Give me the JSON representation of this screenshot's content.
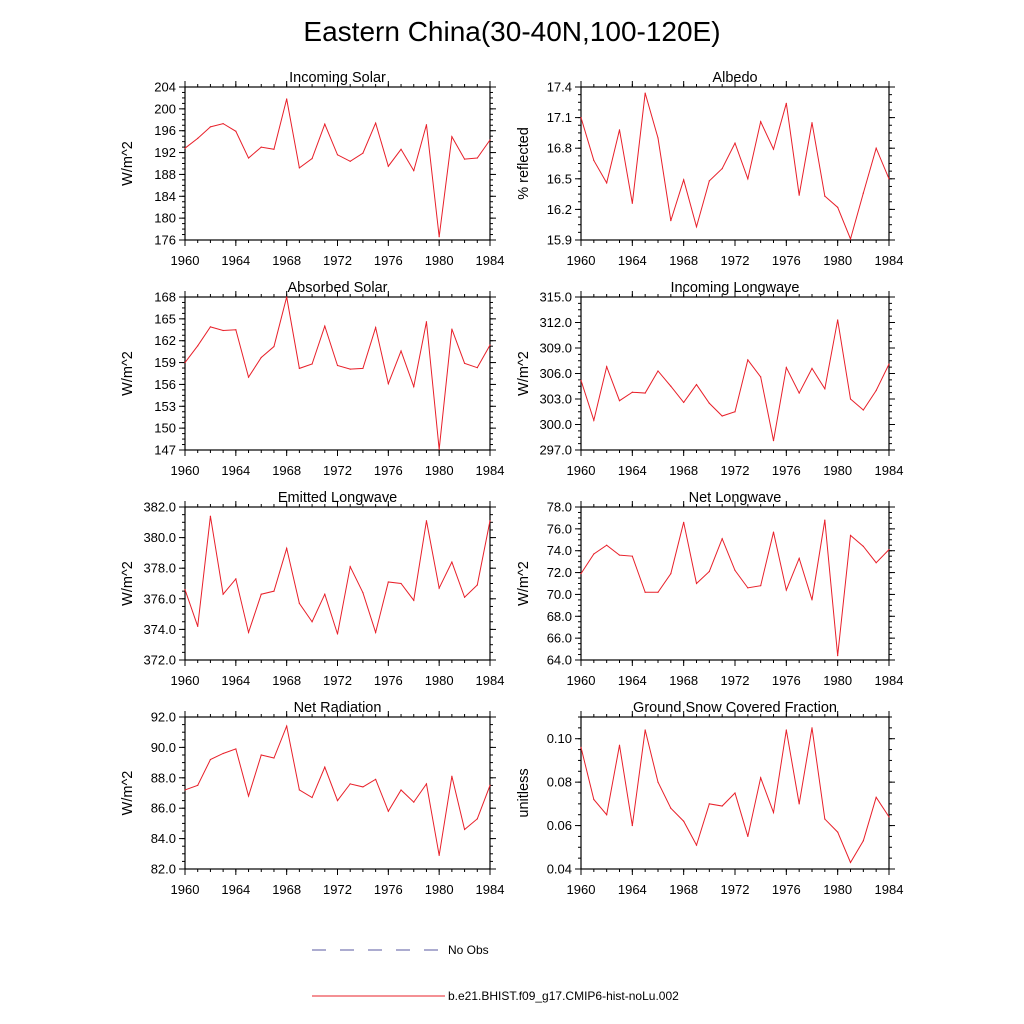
{
  "title": "Eastern China(30-40N,100-120E)",
  "legend": {
    "entries": [
      {
        "label": "No Obs",
        "style": "dashed",
        "color": "#5a5aa0"
      },
      {
        "label": "b.e21.BHIST.f09_g17.CMIP6-hist-noLu.002",
        "style": "solid",
        "color": "#e8202a"
      }
    ]
  },
  "chart_data": [
    {
      "type": "line",
      "title": "Incoming Solar",
      "ylabel": "W/m^2",
      "x": [
        1960,
        1961,
        1962,
        1963,
        1964,
        1965,
        1966,
        1967,
        1968,
        1969,
        1970,
        1971,
        1972,
        1973,
        1974,
        1975,
        1976,
        1977,
        1978,
        1979,
        1980,
        1981,
        1982,
        1983,
        1984
      ],
      "series": [
        {
          "name": "b.e21.BHIST.f09_g17.CMIP6-hist-noLu.002",
          "values": [
            192.8,
            194.6,
            196.7,
            197.3,
            195.9,
            191.0,
            193.0,
            192.6,
            201.8,
            189.2,
            190.9,
            197.2,
            191.6,
            190.4,
            191.9,
            197.4,
            189.5,
            192.6,
            188.7,
            197.1,
            176.6,
            194.9,
            190.8,
            191.0,
            194.3
          ]
        }
      ],
      "xlim": [
        1960,
        1984
      ],
      "ylim": [
        176,
        204
      ],
      "yticks": [
        "176",
        "180",
        "184",
        "188",
        "192",
        "196",
        "200",
        "204"
      ],
      "xticks": [
        "1960",
        "1964",
        "1968",
        "1972",
        "1976",
        "1980",
        "1984"
      ]
    },
    {
      "type": "line",
      "title": "Albedo",
      "ylabel": "% reflected",
      "x": [
        1960,
        1961,
        1962,
        1963,
        1964,
        1965,
        1966,
        1967,
        1968,
        1969,
        1970,
        1971,
        1972,
        1973,
        1974,
        1975,
        1976,
        1977,
        1978,
        1979,
        1980,
        1981,
        1982,
        1983,
        1984
      ],
      "series": [
        {
          "name": "b.e21.BHIST.f09_g17.CMIP6-hist-noLu.002",
          "values": [
            17.1,
            16.68,
            16.46,
            16.98,
            16.26,
            17.34,
            16.9,
            16.09,
            16.49,
            16.03,
            16.48,
            16.6,
            16.85,
            16.5,
            17.06,
            16.79,
            17.24,
            16.34,
            17.05,
            16.33,
            16.22,
            15.91,
            16.36,
            16.8,
            16.5
          ]
        }
      ],
      "xlim": [
        1960,
        1984
      ],
      "ylim": [
        15.9,
        17.4
      ],
      "yticks": [
        "15.9",
        "16.2",
        "16.5",
        "16.8",
        "17.1",
        "17.4"
      ],
      "xticks": [
        "1960",
        "1964",
        "1968",
        "1972",
        "1976",
        "1980",
        "1984"
      ]
    },
    {
      "type": "line",
      "title": "Absorbed Solar",
      "ylabel": "W/m^2",
      "x": [
        1960,
        1961,
        1962,
        1963,
        1964,
        1965,
        1966,
        1967,
        1968,
        1969,
        1970,
        1971,
        1972,
        1973,
        1974,
        1975,
        1976,
        1977,
        1978,
        1979,
        1980,
        1981,
        1982,
        1983,
        1984
      ],
      "series": [
        {
          "name": "b.e21.BHIST.f09_g17.CMIP6-hist-noLu.002",
          "values": [
            159.0,
            161.3,
            163.9,
            163.4,
            163.5,
            157.0,
            159.7,
            161.2,
            168.0,
            158.2,
            158.8,
            164.0,
            158.6,
            158.1,
            158.2,
            163.8,
            156.1,
            160.6,
            155.7,
            164.6,
            147.1,
            163.6,
            158.9,
            158.3,
            161.4
          ]
        }
      ],
      "xlim": [
        1960,
        1984
      ],
      "ylim": [
        147,
        168
      ],
      "yticks": [
        "147",
        "150",
        "153",
        "156",
        "159",
        "162",
        "165",
        "168"
      ],
      "xticks": [
        "1960",
        "1964",
        "1968",
        "1972",
        "1976",
        "1980",
        "1984"
      ]
    },
    {
      "type": "line",
      "title": "Incoming Longwave",
      "ylabel": "W/m^2",
      "x": [
        1960,
        1961,
        1962,
        1963,
        1964,
        1965,
        1966,
        1967,
        1968,
        1969,
        1970,
        1971,
        1972,
        1973,
        1974,
        1975,
        1976,
        1977,
        1978,
        1979,
        1980,
        1981,
        1982,
        1983,
        1984
      ],
      "series": [
        {
          "name": "b.e21.BHIST.f09_g17.CMIP6-hist-noLu.002",
          "values": [
            305.2,
            300.5,
            306.8,
            302.8,
            303.8,
            303.7,
            306.3,
            304.5,
            302.6,
            304.7,
            302.5,
            301.0,
            301.5,
            307.6,
            305.6,
            298.1,
            306.7,
            303.7,
            306.6,
            304.2,
            312.3,
            303.0,
            301.7,
            304.0,
            307.1
          ]
        }
      ],
      "xlim": [
        1960,
        1984
      ],
      "ylim": [
        297,
        315
      ],
      "yticks": [
        "297.0",
        "300.0",
        "303.0",
        "306.0",
        "309.0",
        "312.0",
        "315.0"
      ],
      "xticks": [
        "1960",
        "1964",
        "1968",
        "1972",
        "1976",
        "1980",
        "1984"
      ]
    },
    {
      "type": "line",
      "title": "Emitted Longwave",
      "ylabel": "W/m^2",
      "x": [
        1960,
        1961,
        1962,
        1963,
        1964,
        1965,
        1966,
        1967,
        1968,
        1969,
        1970,
        1971,
        1972,
        1973,
        1974,
        1975,
        1976,
        1977,
        1978,
        1979,
        1980,
        1981,
        1982,
        1983,
        1984
      ],
      "series": [
        {
          "name": "b.e21.BHIST.f09_g17.CMIP6-hist-noLu.002",
          "values": [
            376.6,
            374.2,
            381.4,
            376.3,
            377.3,
            373.8,
            376.3,
            376.5,
            379.3,
            375.7,
            374.5,
            376.3,
            373.7,
            378.1,
            376.4,
            373.8,
            377.1,
            377.0,
            375.9,
            381.1,
            376.7,
            378.4,
            376.1,
            376.9,
            381.1
          ]
        }
      ],
      "xlim": [
        1960,
        1984
      ],
      "ylim": [
        372,
        382
      ],
      "yticks": [
        "372.0",
        "374.0",
        "376.0",
        "378.0",
        "380.0",
        "382.0"
      ],
      "xticks": [
        "1960",
        "1964",
        "1968",
        "1972",
        "1976",
        "1980",
        "1984"
      ]
    },
    {
      "type": "line",
      "title": "Net Longwave",
      "ylabel": "W/m^2",
      "x": [
        1960,
        1961,
        1962,
        1963,
        1964,
        1965,
        1966,
        1967,
        1968,
        1969,
        1970,
        1971,
        1972,
        1973,
        1974,
        1975,
        1976,
        1977,
        1978,
        1979,
        1980,
        1981,
        1982,
        1983,
        1984
      ],
      "series": [
        {
          "name": "b.e21.BHIST.f09_g17.CMIP6-hist-noLu.002",
          "values": [
            71.9,
            73.7,
            74.5,
            73.6,
            73.5,
            70.2,
            70.2,
            71.9,
            76.6,
            71.0,
            72.1,
            75.1,
            72.2,
            70.6,
            70.8,
            75.7,
            70.4,
            73.3,
            69.5,
            76.8,
            64.4,
            75.4,
            74.4,
            72.9,
            74.1
          ]
        }
      ],
      "xlim": [
        1960,
        1984
      ],
      "ylim": [
        64,
        78
      ],
      "yticks": [
        "64.0",
        "66.0",
        "68.0",
        "70.0",
        "72.0",
        "74.0",
        "76.0",
        "78.0"
      ],
      "xticks": [
        "1960",
        "1964",
        "1968",
        "1972",
        "1976",
        "1980",
        "1984"
      ]
    },
    {
      "type": "line",
      "title": "Net Radiation",
      "ylabel": "W/m^2",
      "x": [
        1960,
        1961,
        1962,
        1963,
        1964,
        1965,
        1966,
        1967,
        1968,
        1969,
        1970,
        1971,
        1972,
        1973,
        1974,
        1975,
        1976,
        1977,
        1978,
        1979,
        1980,
        1981,
        1982,
        1983,
        1984
      ],
      "series": [
        {
          "name": "b.e21.BHIST.f09_g17.CMIP6-hist-noLu.002",
          "values": [
            87.2,
            87.5,
            89.2,
            89.6,
            89.9,
            86.8,
            89.5,
            89.3,
            91.4,
            87.2,
            86.7,
            88.7,
            86.5,
            87.6,
            87.4,
            87.9,
            85.8,
            87.2,
            86.4,
            87.6,
            82.9,
            88.1,
            84.6,
            85.3,
            87.5
          ]
        }
      ],
      "xlim": [
        1960,
        1984
      ],
      "ylim": [
        82,
        92
      ],
      "yticks": [
        "82.0",
        "84.0",
        "86.0",
        "88.0",
        "90.0",
        "92.0"
      ],
      "xticks": [
        "1960",
        "1964",
        "1968",
        "1972",
        "1976",
        "1980",
        "1984"
      ]
    },
    {
      "type": "line",
      "title": "Ground Snow Covered Fraction",
      "ylabel": "unitless",
      "x": [
        1960,
        1961,
        1962,
        1963,
        1964,
        1965,
        1966,
        1967,
        1968,
        1969,
        1970,
        1971,
        1972,
        1973,
        1974,
        1975,
        1976,
        1977,
        1978,
        1979,
        1980,
        1981,
        1982,
        1983,
        1984
      ],
      "series": [
        {
          "name": "b.e21.BHIST.f09_g17.CMIP6-hist-noLu.002",
          "values": [
            0.096,
            0.072,
            0.065,
            0.097,
            0.06,
            0.104,
            0.08,
            0.068,
            0.062,
            0.051,
            0.07,
            0.069,
            0.075,
            0.055,
            0.082,
            0.066,
            0.104,
            0.07,
            0.105,
            0.063,
            0.057,
            0.043,
            0.053,
            0.073,
            0.064
          ]
        }
      ],
      "xlim": [
        1960,
        1984
      ],
      "ylim": [
        0.04,
        0.11
      ],
      "yticks": [
        "0.04",
        "0.06",
        "0.08",
        "0.10"
      ],
      "ytick_values": [
        0.04,
        0.06,
        0.08,
        0.1
      ],
      "xticks": [
        "1960",
        "1964",
        "1968",
        "1972",
        "1976",
        "1980",
        "1984"
      ]
    }
  ]
}
